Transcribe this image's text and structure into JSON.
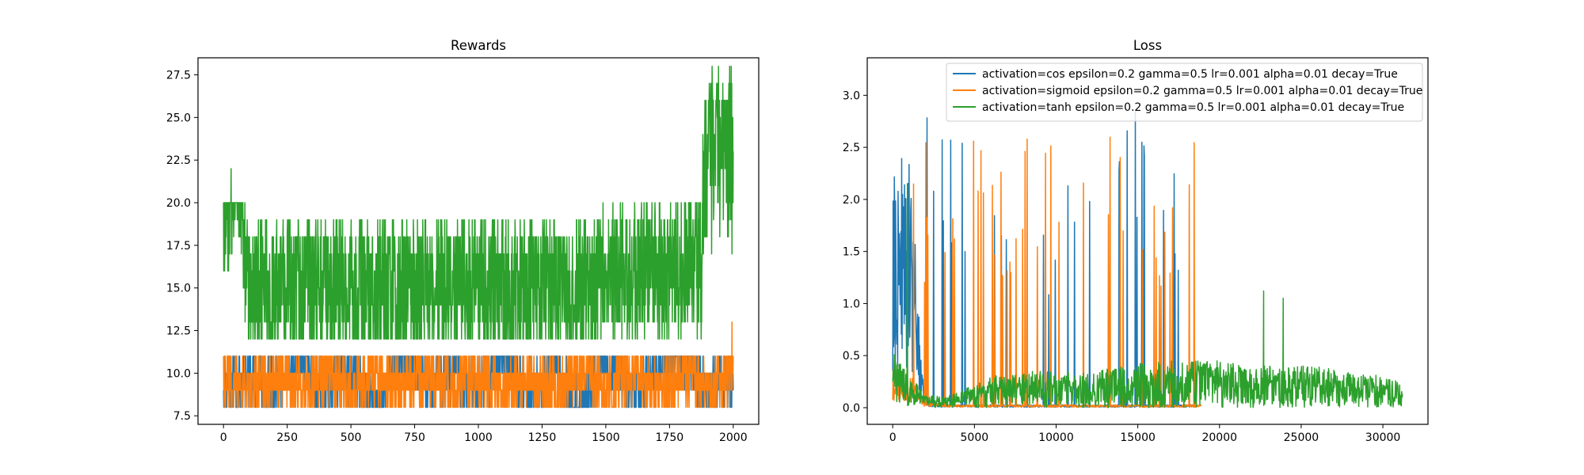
{
  "chart_data": [
    {
      "type": "line",
      "title": "Rewards",
      "xlabel": "",
      "ylabel": "",
      "xlim": [
        -100,
        2100
      ],
      "ylim": [
        7.0,
        28.5
      ],
      "xticks": [
        0,
        250,
        500,
        750,
        1000,
        1250,
        1500,
        1750,
        2000
      ],
      "xtick_labels": [
        "0",
        "250",
        "500",
        "750",
        "1000",
        "1250",
        "1500",
        "1750",
        "2000"
      ],
      "yticks": [
        7.5,
        10.0,
        12.5,
        15.0,
        17.5,
        20.0,
        22.5,
        25.0,
        27.5
      ],
      "ytick_labels": [
        "7.5",
        "10.0",
        "12.5",
        "15.0",
        "17.5",
        "20.0",
        "22.5",
        "25.0",
        "27.5"
      ],
      "grid": false,
      "series": [
        {
          "name": "activation=cos epsilon=0.2 gamma=0.5 lr=0.001 alpha=0.01 decay=True",
          "color": "#1f77b4",
          "x": [
            0,
            100,
            200,
            300,
            400,
            500,
            600,
            700,
            800,
            900,
            1000,
            1100,
            1200,
            1300,
            1400,
            1500,
            1600,
            1700,
            1800,
            1900,
            2000
          ],
          "y": [
            9,
            10,
            9,
            11,
            9,
            10,
            8,
            11,
            9,
            10,
            9,
            11,
            9,
            10,
            8,
            11,
            9,
            10,
            11,
            9,
            10
          ],
          "range": [
            8,
            11
          ]
        },
        {
          "name": "activation=sigmoid epsilon=0.2 gamma=0.5 lr=0.001 alpha=0.01 decay=True",
          "color": "#ff7f0e",
          "x": [
            0,
            100,
            200,
            300,
            400,
            500,
            600,
            700,
            800,
            900,
            1000,
            1100,
            1200,
            1300,
            1400,
            1500,
            1600,
            1700,
            1800,
            1900,
            2000
          ],
          "y": [
            10,
            9,
            10,
            9,
            10,
            9,
            10,
            9,
            10,
            9,
            10,
            9,
            10,
            9,
            10,
            9,
            10,
            9,
            10,
            9,
            10
          ],
          "range": [
            8,
            11
          ],
          "max": 13
        },
        {
          "name": "activation=tanh epsilon=0.2 gamma=0.5 lr=0.001 alpha=0.01 decay=True",
          "color": "#2ca02c",
          "x": [
            0,
            50,
            100,
            200,
            300,
            400,
            500,
            600,
            700,
            800,
            900,
            1000,
            1100,
            1200,
            1300,
            1400,
            1500,
            1600,
            1700,
            1800,
            1850,
            1900,
            1950,
            2000
          ],
          "y": [
            19,
            22,
            15,
            15,
            15,
            15,
            15,
            15,
            15,
            15,
            15,
            15,
            15,
            15,
            15,
            15,
            16,
            16,
            16,
            16,
            17,
            19,
            22,
            20
          ],
          "range": [
            12,
            20
          ],
          "max": 28
        }
      ]
    },
    {
      "type": "line",
      "title": "Loss",
      "xlabel": "",
      "ylabel": "",
      "xlim": [
        -1560,
        32760
      ],
      "ylim": [
        -0.16,
        3.36
      ],
      "xticks": [
        0,
        5000,
        10000,
        15000,
        20000,
        25000,
        30000
      ],
      "xtick_labels": [
        "0",
        "5000",
        "10000",
        "15000",
        "20000",
        "25000",
        "30000"
      ],
      "yticks": [
        0.0,
        0.5,
        1.0,
        1.5,
        2.0,
        2.5,
        3.0
      ],
      "ytick_labels": [
        "0.0",
        "0.5",
        "1.0",
        "1.5",
        "2.0",
        "2.5",
        "3.0"
      ],
      "grid": false,
      "legend_position": "top-right",
      "series": [
        {
          "name": "activation=cos epsilon=0.2 gamma=0.5 lr=0.001 alpha=0.01 decay=True",
          "color": "#1f77b4",
          "x": [
            0,
            1000,
            2000,
            3000,
            4000,
            5000,
            6000,
            7000,
            8000,
            9000,
            10000,
            11000,
            12000,
            13000,
            14000,
            15000,
            16000,
            17000,
            18000,
            18600
          ],
          "y": [
            1.6,
            1.7,
            0.05,
            0.02,
            0.02,
            0.02,
            0.02,
            0.02,
            0.02,
            0.02,
            0.02,
            0.02,
            0.02,
            0.02,
            0.02,
            0.02,
            0.02,
            0.02,
            0.02,
            0.02
          ],
          "peaks": [
            1.7,
            2.5,
            2.4,
            2.2,
            2.9,
            3.2,
            3.0,
            3.1,
            2.9,
            2.8,
            2.7,
            2.5,
            2.8,
            2.4,
            2.6,
            2.4,
            1.8
          ]
        },
        {
          "name": "activation=sigmoid epsilon=0.2 gamma=0.5 lr=0.001 alpha=0.01 decay=True",
          "color": "#ff7f0e",
          "x": [
            0,
            1000,
            2000,
            3000,
            4000,
            5000,
            6000,
            7000,
            8000,
            9000,
            10000,
            11000,
            12000,
            13000,
            14000,
            15000,
            16000,
            17000,
            18000,
            18900
          ],
          "y": [
            0.3,
            0.25,
            0.05,
            0.02,
            0.02,
            0.02,
            0.02,
            0.02,
            0.02,
            0.02,
            0.02,
            0.02,
            0.02,
            0.02,
            0.02,
            0.02,
            0.02,
            0.02,
            0.02,
            0.02
          ],
          "peaks": [
            2.2,
            2.0,
            2.6,
            2.7,
            2.5,
            2.6,
            2.7,
            2.8,
            2.9,
            2.8,
            2.7,
            2.5,
            2.6,
            2.3,
            2.4,
            2.1,
            2.2,
            2.0,
            1.9
          ]
        },
        {
          "name": "activation=tanh epsilon=0.2 gamma=0.5 lr=0.001 alpha=0.01 decay=True",
          "color": "#2ca02c",
          "x": [
            0,
            1000,
            2000,
            3000,
            4000,
            6000,
            8000,
            10000,
            12000,
            14000,
            16000,
            18000,
            20000,
            22000,
            24000,
            26000,
            28000,
            30000,
            31200
          ],
          "y": [
            0.6,
            0.3,
            0.15,
            0.1,
            0.15,
            0.3,
            0.35,
            0.35,
            0.35,
            0.4,
            0.45,
            0.45,
            0.45,
            0.4,
            0.4,
            0.4,
            0.35,
            0.3,
            0.25
          ],
          "spikes": [
            [
              22700,
              1.12
            ],
            [
              23900,
              1.05
            ],
            [
              900,
              2.15
            ]
          ]
        }
      ]
    }
  ]
}
